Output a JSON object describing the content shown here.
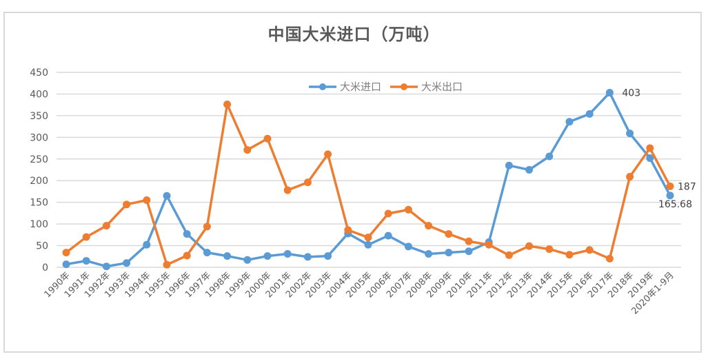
{
  "chart_data": {
    "type": "line",
    "title": "中国大米进口（万吨）",
    "xlabel": "",
    "ylabel": "",
    "ylim": [
      0,
      450
    ],
    "yticks": [
      0,
      50,
      100,
      150,
      200,
      250,
      300,
      350,
      400,
      450
    ],
    "grid": true,
    "legend_position": "top-center",
    "categories": [
      "1990年",
      "1991年",
      "1992年",
      "1993年",
      "1994年",
      "1995年",
      "1996年",
      "1997年",
      "1998年",
      "1999年",
      "2000年",
      "2001年",
      "2002年",
      "2003年",
      "2004年",
      "2005年",
      "2006年",
      "2007年",
      "2008年",
      "2009年",
      "2010年",
      "2011年",
      "2012年",
      "2013年",
      "2014年",
      "2015年",
      "2016年",
      "2017年",
      "2018年",
      "2019年",
      "2020年1-9月"
    ],
    "series": [
      {
        "name": "大米进口",
        "color": "#5b9bd5",
        "values": [
          7,
          15,
          2,
          10,
          52,
          165,
          77,
          34,
          26,
          17,
          26,
          31,
          24,
          26,
          78,
          52,
          73,
          48,
          31,
          34,
          37,
          58,
          235,
          225,
          256,
          336,
          354,
          403,
          309,
          252,
          165.68
        ]
      },
      {
        "name": "大米出口",
        "color": "#ed7d31",
        "values": [
          34,
          70,
          96,
          145,
          155,
          6,
          27,
          94,
          376,
          271,
          297,
          178,
          196,
          261,
          86,
          69,
          124,
          133,
          96,
          77,
          60,
          52,
          28,
          49,
          42,
          29,
          40,
          20,
          209,
          275,
          187
        ]
      }
    ],
    "annotations": [
      {
        "series": "大米进口",
        "category": "2017年",
        "text": "403"
      },
      {
        "series": "大米进口",
        "category": "2020年1-9月",
        "text": "165.68"
      },
      {
        "series": "大米出口",
        "category": "2020年1-9月",
        "text": "187"
      }
    ]
  }
}
